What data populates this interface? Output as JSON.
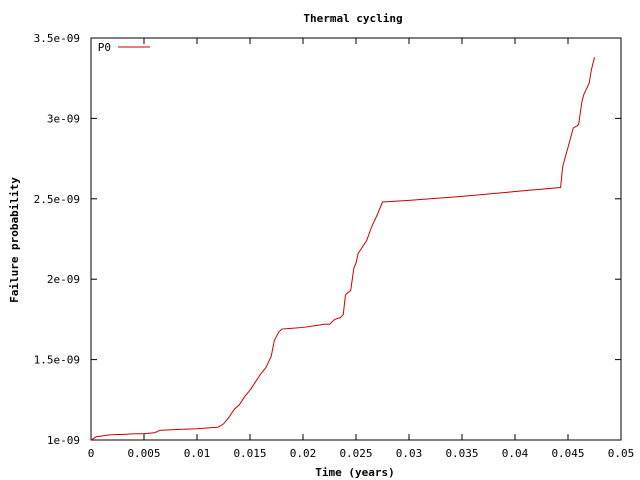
{
  "chart_data": {
    "type": "line",
    "title": "Thermal cycling",
    "xlabel": "Time (years)",
    "ylabel": "Failure probability",
    "xlim": [
      0,
      0.05
    ],
    "ylim": [
      1e-09,
      3.5e-09
    ],
    "x_ticks": [
      0,
      0.005,
      0.01,
      0.015,
      0.02,
      0.025,
      0.03,
      0.035,
      0.04,
      0.045,
      0.05
    ],
    "x_tick_labels": [
      "0",
      "0.005",
      "0.01",
      "0.015",
      "0.02",
      "0.025",
      "0.03",
      "0.035",
      "0.04",
      "0.045",
      "0.05"
    ],
    "y_ticks": [
      1e-09,
      1.5e-09,
      2e-09,
      2.5e-09,
      3e-09,
      3.5e-09
    ],
    "y_tick_labels": [
      "1e-09",
      "1.5e-09",
      "2e-09",
      "2.5e-09",
      "3e-09",
      "3.5e-09"
    ],
    "grid": false,
    "legend_position": "top-left",
    "series": [
      {
        "name": "P0",
        "color": "#cc0000",
        "x": [
          0,
          0.0005,
          0.001,
          0.0015,
          0.002,
          0.003,
          0.004,
          0.005,
          0.006,
          0.0065,
          0.008,
          0.01,
          0.012,
          0.0125,
          0.013,
          0.0135,
          0.014,
          0.0145,
          0.015,
          0.0155,
          0.016,
          0.0165,
          0.017,
          0.0173,
          0.0177,
          0.018,
          0.019,
          0.02,
          0.021,
          0.022,
          0.0225,
          0.023,
          0.0235,
          0.0238,
          0.024,
          0.0241,
          0.0245,
          0.0248,
          0.025,
          0.0252,
          0.0255,
          0.026,
          0.0265,
          0.027,
          0.0275,
          0.03,
          0.035,
          0.04,
          0.0443,
          0.0445,
          0.0447,
          0.045,
          0.0455,
          0.046,
          0.0463,
          0.0465,
          0.047,
          0.0472,
          0.0475
        ],
        "y": [
          1e-09,
          1.02e-09,
          1.025e-09,
          1.03e-09,
          1.033e-09,
          1.035e-09,
          1.038e-09,
          1.04e-09,
          1.045e-09,
          1.06e-09,
          1.065e-09,
          1.07e-09,
          1.08e-09,
          1.1e-09,
          1.14e-09,
          1.19e-09,
          1.22e-09,
          1.27e-09,
          1.31e-09,
          1.36e-09,
          1.41e-09,
          1.45e-09,
          1.52e-09,
          1.62e-09,
          1.67e-09,
          1.69e-09,
          1.695e-09,
          1.7e-09,
          1.71e-09,
          1.72e-09,
          1.72e-09,
          1.75e-09,
          1.76e-09,
          1.78e-09,
          1.9e-09,
          1.91e-09,
          1.93e-09,
          2.07e-09,
          2.1e-09,
          2.16e-09,
          2.19e-09,
          2.24e-09,
          2.33e-09,
          2.4e-09,
          2.48e-09,
          2.49e-09,
          2.515e-09,
          2.545e-09,
          2.57e-09,
          2.7e-09,
          2.75e-09,
          2.82e-09,
          2.94e-09,
          2.96e-09,
          3.1e-09,
          3.15e-09,
          3.22e-09,
          3.3e-09,
          3.38e-09
        ]
      }
    ]
  }
}
